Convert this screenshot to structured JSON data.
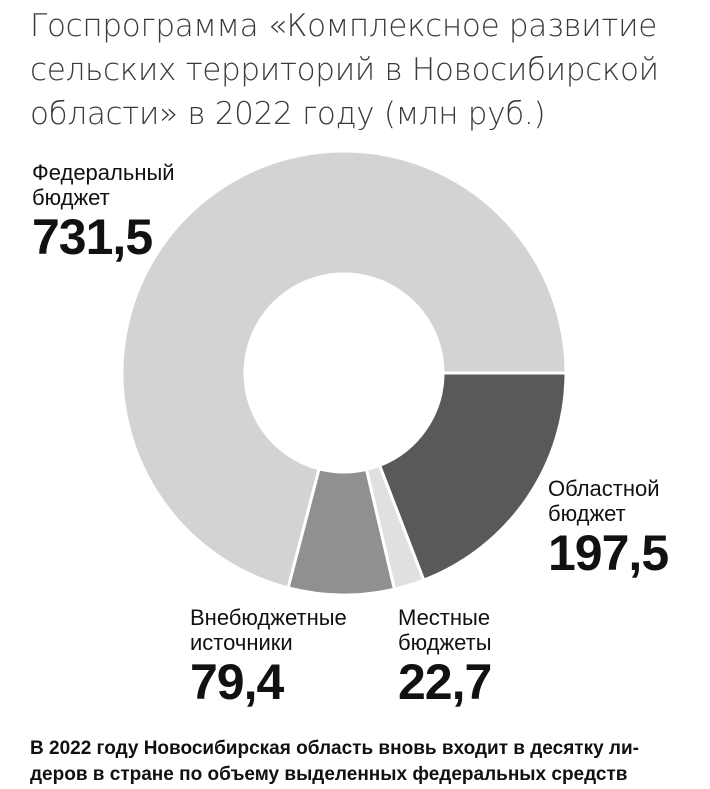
{
  "title_lines": [
    "Госпрограмма «Комплексное развитие",
    "сельских территорий в Новосибирской",
    "области» в 2022 году (млн руб.)"
  ],
  "chart_data": {
    "type": "pie",
    "variant": "donut",
    "title": "Госпрограмма «Комплексное развитие сельских территорий в Новосибирской области» в 2022 году (млн руб.)",
    "unit": "млн руб.",
    "slices": [
      {
        "name": "Областной бюджет",
        "name_lines": [
          "Областной",
          "бюджет"
        ],
        "value": 197.5,
        "value_label": "197,5",
        "color": "#595959"
      },
      {
        "name": "Местные бюджеты",
        "name_lines": [
          "Местные",
          "бюджеты"
        ],
        "value": 22.7,
        "value_label": "22,7",
        "color": "#e0e0e0"
      },
      {
        "name": "Внебюджетные источники",
        "name_lines": [
          "Внебюджетные",
          "источники"
        ],
        "value": 79.4,
        "value_label": "79,4",
        "color": "#909090"
      },
      {
        "name": "Федеральный бюджет",
        "name_lines": [
          "Федеральный",
          "бюджет"
        ],
        "value": 731.5,
        "value_label": "731,5",
        "color": "#d3d3d3"
      }
    ]
  },
  "footnote_lines": [
    "В 2022 году Новосибирская область вновь входит в десятку ли-",
    "деров в стране по объему выделенных федеральных средств"
  ]
}
